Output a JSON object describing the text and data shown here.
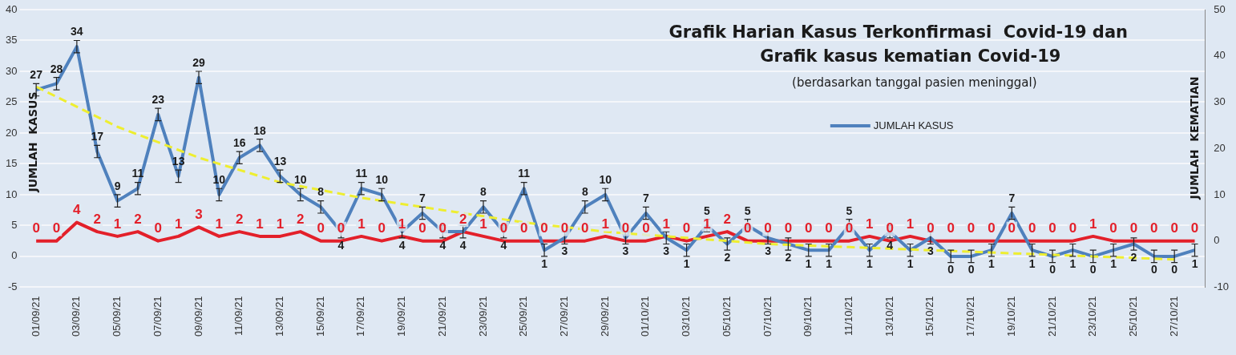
{
  "chart_data": {
    "type": "line",
    "title": "Grafik Harian Kasus Terkonfirmasi  Covid-19 dan Grafik kasus kematian Covid-19",
    "subtitle": "(berdasarkan tanggal pasien meninggal)",
    "ylabel": "JUMLAH  KASUS",
    "y2label": "JUMLAH  KEMATIAN",
    "categories": [
      "01/09/21",
      null,
      "03/09/21",
      null,
      "05/09/21",
      null,
      "07/09/21",
      null,
      "09/09/21",
      null,
      "11/09/21",
      null,
      "13/09/21",
      null,
      "15/09/21",
      null,
      "17/09/21",
      null,
      "19/09/21",
      null,
      "21/09/21",
      null,
      "23/09/21",
      null,
      "25/09/21",
      null,
      "27/09/21",
      null,
      "29/09/21",
      null,
      "01/10/21",
      null,
      "03/10/21",
      null,
      "05/10/21",
      null,
      "07/10/21",
      null,
      "09/10/21",
      null,
      "11/10/21",
      null,
      "13/10/21",
      null,
      "15/10/21",
      null,
      "17/10/21",
      null,
      "19/10/21",
      null,
      "21/10/21",
      null,
      "23/10/21",
      null,
      "25/10/21",
      null,
      "27/10/21",
      null
    ],
    "series": [
      {
        "name": "JUMLAH KASUS",
        "color": "#4f81bd",
        "data_labels": true,
        "values": [
          27,
          28,
          34,
          17,
          9,
          11,
          23,
          13,
          29,
          10,
          16,
          18,
          13,
          10,
          8,
          4,
          11,
          10,
          4,
          7,
          4,
          4,
          8,
          4,
          11,
          1,
          3,
          8,
          10,
          3,
          7,
          3,
          1,
          5,
          2,
          5,
          3,
          2,
          1,
          1,
          5,
          1,
          4,
          1,
          3,
          0,
          0,
          1,
          7,
          1,
          0,
          1,
          0,
          1,
          2,
          0,
          0,
          1
        ],
        "errors": [
          1,
          1,
          1,
          1,
          1,
          1,
          1,
          1,
          1,
          1,
          1,
          1,
          1,
          1,
          1,
          1,
          1,
          1,
          1,
          1,
          1,
          1,
          1,
          1,
          1,
          1,
          1,
          1,
          1,
          1,
          1,
          1,
          1,
          1,
          1,
          1,
          1,
          1,
          1,
          1,
          1,
          1,
          1,
          1,
          1,
          1,
          1,
          1,
          1,
          1,
          1,
          1,
          1,
          1,
          1,
          1,
          1,
          1
        ]
      },
      {
        "color": "#e3202a",
        "axis": "y2",
        "data_labels": true,
        "values": [
          0,
          0,
          4,
          2,
          1,
          2,
          0,
          1,
          3,
          1,
          2,
          1,
          1,
          2,
          0,
          0,
          1,
          0,
          1,
          0,
          0,
          2,
          1,
          0,
          0,
          0,
          0,
          0,
          1,
          0,
          0,
          1,
          0,
          1,
          2,
          0,
          0,
          0,
          0,
          0,
          0,
          1,
          0,
          1,
          0,
          0,
          0,
          0,
          0,
          0,
          0,
          0,
          1,
          0,
          0,
          0,
          0,
          0
        ]
      },
      {
        "type": "line",
        "color": "#eeee30",
        "line_style": "dashed",
        "x": [
          "01/09/21",
          "05/09/21",
          "09/09/21",
          "13/09/21",
          "17/09/21",
          "21/09/21",
          "25/09/21",
          "29/09/21",
          "03/10/21",
          "07/10/21",
          "11/10/21",
          "15/10/21",
          "19/10/21",
          "23/10/21",
          "27/10/21"
        ],
        "values": [
          27.5,
          21,
          16,
          12,
          9.5,
          7.5,
          5.5,
          4,
          3,
          2,
          1.5,
          1,
          0.5,
          0,
          -0.5
        ]
      }
    ],
    "ylim": [
      -5,
      40
    ],
    "yticks": [
      -5,
      0,
      5,
      10,
      15,
      20,
      25,
      30,
      35,
      40
    ],
    "y2lim": [
      -10,
      50
    ],
    "y2ticks": [
      -10,
      0,
      10,
      20,
      30,
      40,
      50
    ],
    "grid": "y",
    "legend": "top right",
    "marker": "none",
    "line_style": "solid"
  }
}
